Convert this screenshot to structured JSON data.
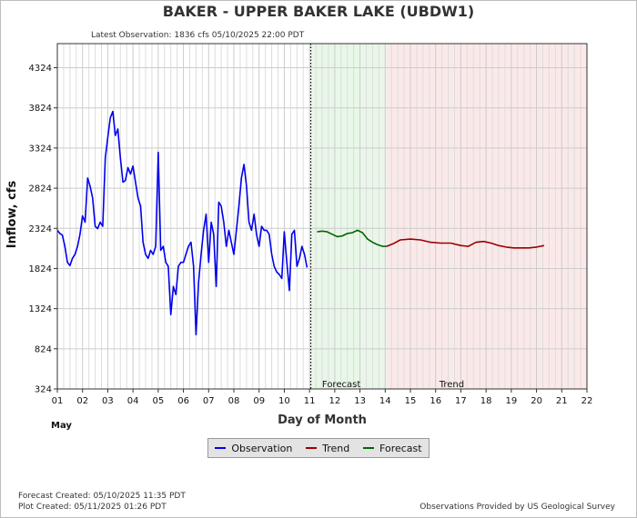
{
  "page": {
    "title": "BAKER - UPPER BAKER LAKE  (UBDW1)",
    "latest_observation": "Latest Observation: 1836 cfs 05/10/2025 22:00 PDT",
    "forecast_created": "Forecast Created: 05/10/2025 11:35 PDT",
    "plot_created": "Plot Created: 05/11/2025 01:26 PDT",
    "credit": "Observations Provided by US Geological Survey"
  },
  "legend": {
    "observation": "Observation",
    "trend": "Trend",
    "forecast": "Forecast"
  },
  "colors": {
    "observation": "#0000ee",
    "trend": "#990000",
    "forecast": "#006600",
    "forecast_zone": "#e8f7e8",
    "trend_zone": "#fbe9e9",
    "grid": "#cccccc"
  },
  "chart_data": {
    "type": "line",
    "title": "BAKER - UPPER BAKER LAKE  (UBDW1)",
    "xlabel": "Day of Month",
    "ylabel": "Inflow, cfs",
    "x_month_label": "May",
    "xlim": [
      1,
      22
    ],
    "ylim": [
      324,
      4624
    ],
    "xticks": [
      "01",
      "02",
      "03",
      "04",
      "05",
      "06",
      "07",
      "08",
      "09",
      "10",
      "11",
      "12",
      "13",
      "14",
      "15",
      "16",
      "17",
      "18",
      "19",
      "20",
      "21",
      "22"
    ],
    "yticks": [
      324,
      824,
      1324,
      1824,
      2324,
      2824,
      3324,
      3824,
      4324
    ],
    "zones": [
      {
        "name": "Forecast",
        "x_start": 11.05,
        "x_end": 14.05
      },
      {
        "name": "Trend",
        "x_start": 14.05,
        "x_end": 22
      }
    ],
    "series": [
      {
        "name": "Observation",
        "x": [
          1.0,
          1.1,
          1.2,
          1.3,
          1.4,
          1.5,
          1.6,
          1.7,
          1.8,
          1.9,
          2.0,
          2.1,
          2.2,
          2.3,
          2.4,
          2.5,
          2.6,
          2.7,
          2.8,
          2.9,
          3.0,
          3.1,
          3.2,
          3.3,
          3.4,
          3.5,
          3.6,
          3.7,
          3.8,
          3.9,
          4.0,
          4.1,
          4.2,
          4.3,
          4.4,
          4.5,
          4.6,
          4.7,
          4.8,
          4.9,
          5.0,
          5.1,
          5.2,
          5.3,
          5.4,
          5.5,
          5.6,
          5.7,
          5.8,
          5.9,
          6.0,
          6.1,
          6.2,
          6.3,
          6.4,
          6.5,
          6.6,
          6.7,
          6.8,
          6.9,
          7.0,
          7.1,
          7.2,
          7.3,
          7.4,
          7.5,
          7.6,
          7.7,
          7.8,
          7.9,
          8.0,
          8.1,
          8.2,
          8.3,
          8.4,
          8.5,
          8.6,
          8.7,
          8.8,
          8.9,
          9.0,
          9.1,
          9.2,
          9.3,
          9.4,
          9.5,
          9.6,
          9.7,
          9.8,
          9.9,
          10.0,
          10.1,
          10.2,
          10.3,
          10.4,
          10.5,
          10.6,
          10.7,
          10.8,
          10.9
        ],
        "values": [
          2300,
          2260,
          2240,
          2100,
          1900,
          1860,
          1950,
          2000,
          2100,
          2250,
          2480,
          2400,
          2950,
          2850,
          2700,
          2350,
          2320,
          2400,
          2350,
          3200,
          3450,
          3700,
          3780,
          3480,
          3560,
          3200,
          2900,
          2920,
          3080,
          3000,
          3100,
          2900,
          2700,
          2600,
          2150,
          2000,
          1950,
          2050,
          2000,
          2100,
          3270,
          2050,
          2100,
          1900,
          1850,
          1250,
          1600,
          1500,
          1850,
          1900,
          1900,
          2000,
          2100,
          2150,
          1850,
          1000,
          1650,
          2000,
          2300,
          2500,
          1900,
          2400,
          2250,
          1600,
          2650,
          2600,
          2400,
          2100,
          2300,
          2150,
          2000,
          2300,
          2600,
          2950,
          3120,
          2850,
          2400,
          2300,
          2500,
          2250,
          2100,
          2350,
          2300,
          2300,
          2250,
          2000,
          1850,
          1780,
          1750,
          1700,
          2280,
          1900,
          1550,
          2250,
          2300,
          1850,
          1950,
          2100,
          2000,
          1836
        ]
      },
      {
        "name": "Forecast",
        "x": [
          11.3,
          11.5,
          11.7,
          11.9,
          12.1,
          12.3,
          12.5,
          12.7,
          12.9,
          13.1,
          13.3,
          13.5,
          13.7,
          13.9,
          14.05
        ],
        "values": [
          2280,
          2290,
          2280,
          2250,
          2220,
          2230,
          2260,
          2270,
          2300,
          2270,
          2190,
          2150,
          2120,
          2100,
          2100
        ]
      },
      {
        "name": "Trend",
        "x": [
          14.05,
          14.3,
          14.6,
          15.0,
          15.4,
          15.8,
          16.2,
          16.6,
          17.0,
          17.3,
          17.6,
          17.9,
          18.2,
          18.5,
          18.8,
          19.1,
          19.4,
          19.7,
          20.0,
          20.3
        ],
        "values": [
          2100,
          2130,
          2180,
          2190,
          2180,
          2150,
          2140,
          2140,
          2110,
          2100,
          2150,
          2160,
          2140,
          2110,
          2090,
          2080,
          2080,
          2080,
          2090,
          2110
        ]
      }
    ]
  }
}
